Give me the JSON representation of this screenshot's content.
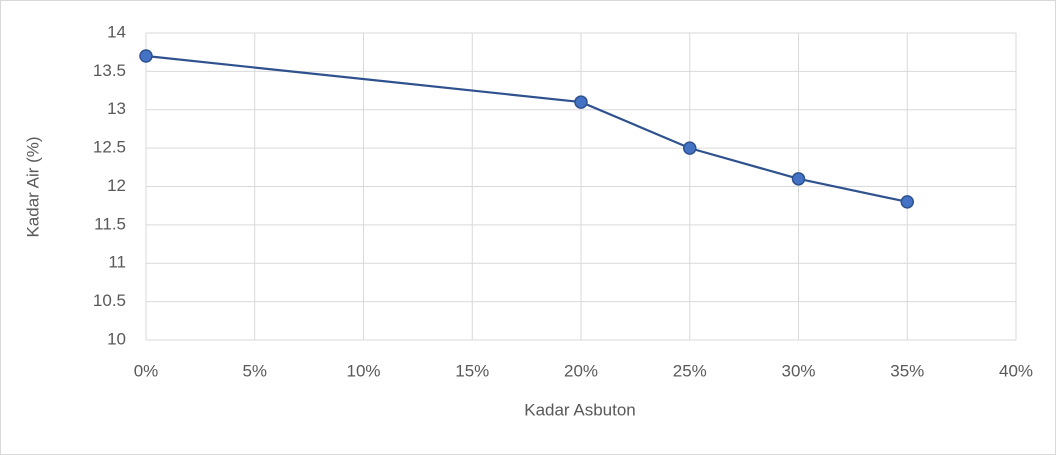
{
  "chart_data": {
    "type": "line",
    "x_label": "Kadar Asbuton",
    "y_label": "Kadar Air (%)",
    "x": [
      0,
      20,
      25,
      30,
      35
    ],
    "series": [
      {
        "name": "Kadar Air",
        "color": "#2f528f",
        "marker_color": "#4472c4",
        "values": [
          13.7,
          13.1,
          12.5,
          12.1,
          11.8
        ]
      }
    ],
    "xlim": [
      0,
      40
    ],
    "xticks": [
      {
        "value": 0,
        "label": "0%"
      },
      {
        "value": 5,
        "label": "5%"
      },
      {
        "value": 10,
        "label": "10%"
      },
      {
        "value": 15,
        "label": "15%"
      },
      {
        "value": 20,
        "label": "20%"
      },
      {
        "value": 25,
        "label": "25%"
      },
      {
        "value": 30,
        "label": "30%"
      },
      {
        "value": 35,
        "label": "35%"
      },
      {
        "value": 40,
        "label": "40%"
      }
    ],
    "ylim": [
      10,
      14
    ],
    "yticks": [
      10,
      {
        "value": 10.5,
        "label": "10.5"
      },
      11,
      {
        "value": 11.5,
        "label": "11.5"
      },
      12,
      {
        "value": 12.5,
        "label": "12.5"
      },
      13,
      {
        "value": 13.5,
        "label": "13.5"
      },
      14
    ],
    "grid": true
  }
}
